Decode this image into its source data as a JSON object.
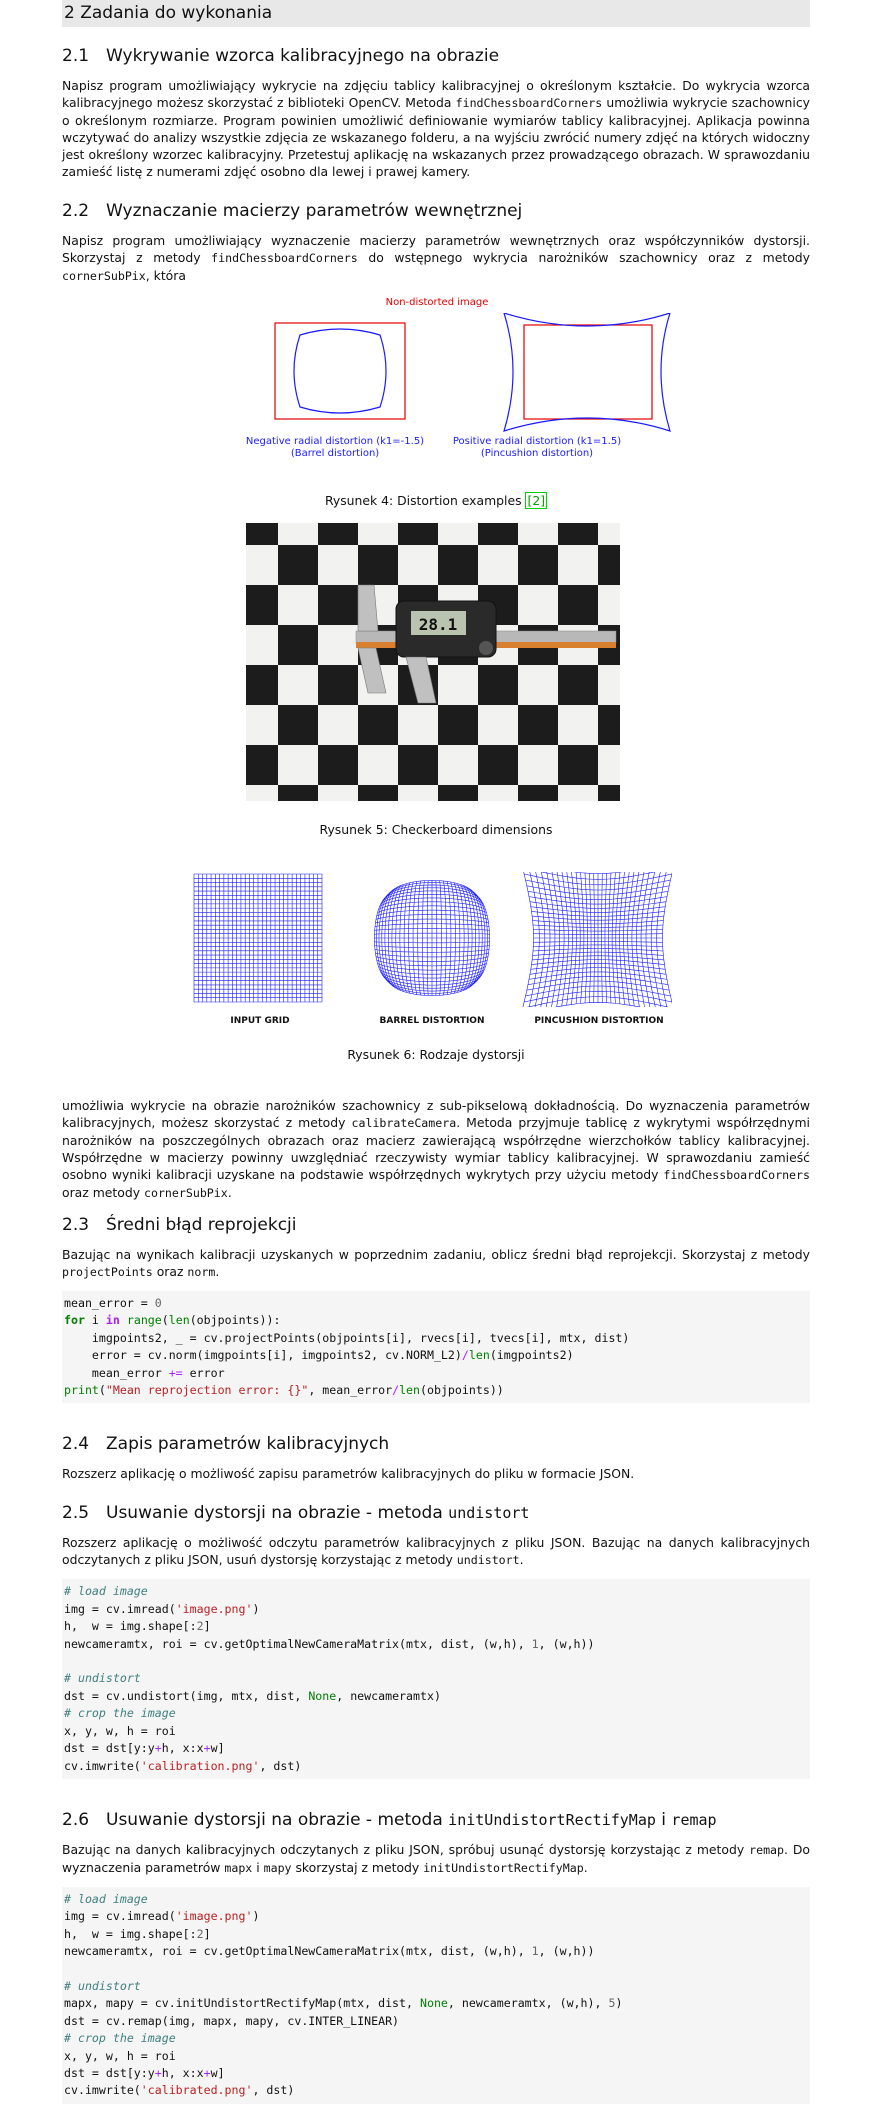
{
  "section": {
    "title": "2 Zadania do wykonania"
  },
  "s21": {
    "num": "2.1",
    "title": "Wykrywanie wzorca kalibracyjnego na obrazie",
    "p1": "Napisz program umożliwiający wykrycie na zdjęciu tablicy kalibracyjnej o określonym kształcie. Do wykrycia wzorca kalibracyjnego możesz skorzystać z biblioteki OpenCV. Metoda ",
    "fn": "findChessboardCorners",
    "p2": " umożliwia wykrycie szachownicy o określonym rozmiarze. Program powinien umożliwić definiowanie wymiarów tablicy kalibracyjnej. Aplikacja powinna wczytywać do analizy wszystkie zdjęcia ze wskazanego folderu, a na wyjściu zwrócić numery zdjęć na których widoczny jest określony wzorzec kalibracyjny. Przetestuj aplikację na wskazanych przez prowadzącego obrazach. W sprawozdaniu zamieść listę z numerami zdjęć osobno dla lewej i prawej kamery."
  },
  "s22": {
    "num": "2.2",
    "title": "Wyznaczanie macierzy parametrów wewnętrznej",
    "p1": "Napisz program umożliwiający wyznaczenie macierzy parametrów wewnętrznych oraz współczynników dystorsji. Skorzystaj z metody ",
    "fn1": "findChessboardCorners",
    "p2": " do wstępnego wykrycia narożników szachownicy oraz z metody ",
    "fn2": "cornerSubPix",
    "p3": ", która"
  },
  "fig4": {
    "title": "Non-distorted image",
    "left_label": "Negative radial distortion (k1=-1.5)",
    "left_label2": "(Barrel distortion)",
    "right_label": "Positive radial distortion (k1=1.5)",
    "right_label2": "(Pincushion distortion)",
    "caption": "Rysunek 4: Distortion examples ",
    "ref": "[2]"
  },
  "fig5": {
    "display": "28.1",
    "caption": "Rysunek 5: Checkerboard dimensions"
  },
  "fig6": {
    "l1": "INPUT GRID",
    "l2": "BARREL DISTORTION",
    "l3": "PINCUSHION DISTORTION",
    "caption": "Rysunek 6: Rodzaje dystorsji"
  },
  "s22b": {
    "p1": "umożliwia wykrycie na obrazie narożników szachownicy z sub-pikselową dokładnością. Do wyznaczenia parametrów kalibracyjnych, możesz skorzystać z metody ",
    "fn1": "calibrateCamera",
    "p2": ". Metoda przyjmuje tablicę z wykrytymi współrzędnymi narożników na poszczególnych obrazach oraz macierz zawierającą współrzędne wierzchołków tablicy kalibracyjnej. Współrzędne w macierzy powinny uwzględniać rzeczywisty wymiar tablicy kalibracyjnej. W sprawozdaniu zamieść osobno wyniki kalibracji uzyskane na podstawie współrzędnych wykrytych przy użyciu metody ",
    "fn2": "findChessboardCorners",
    "p3": " oraz metody ",
    "fn3": "cornerSubPix",
    "p4": "."
  },
  "s23": {
    "num": "2.3",
    "title": "Średni błąd reprojekcji",
    "p1": "Bazując na wynikach kalibracji uzyskanych w poprzednim zadaniu, oblicz średni błąd reprojekcji. Skorzystaj z metody ",
    "fn1": "projectPoints",
    "p2": " oraz ",
    "fn2": "norm",
    "p3": "."
  },
  "s24": {
    "num": "2.4",
    "title": "Zapis parametrów kalibracyjnych",
    "p1": "Rozszerz aplikację o możliwość zapisu parametrów kalibracyjnych do pliku w formacie JSON."
  },
  "s25": {
    "num": "2.5",
    "title": "Usuwanie dystorsji na obrazie - metoda ",
    "title_code": "undistort",
    "p1": "Rozszerz aplikację o możliwość odczytu parametrów kalibracyjnych z pliku JSON. Bazując na danych kalibracyjnych odczytanych z pliku JSON, usuń dystorsję korzystając z metody ",
    "fn1": "undistort",
    "p2": "."
  },
  "s26": {
    "num": "2.6",
    "title": "Usuwanie dystorsji na obrazie - metoda ",
    "title_code": "initUndistortRectifyMap",
    "title_mid": " i ",
    "title_code2": "remap",
    "p1": "Bazując na danych kalibracyjnych odczytanych z pliku JSON, spróbuj usunąć dystorsję korzystając z metody ",
    "fn1": "remap",
    "p2": ". Do wyznaczenia parametrów ",
    "fn2": "mapx",
    "p3": " i ",
    "fn3": "mapy",
    "p4": " skorzystaj z metody ",
    "fn4": "initUndistortRectifyMap",
    "p5": "."
  }
}
